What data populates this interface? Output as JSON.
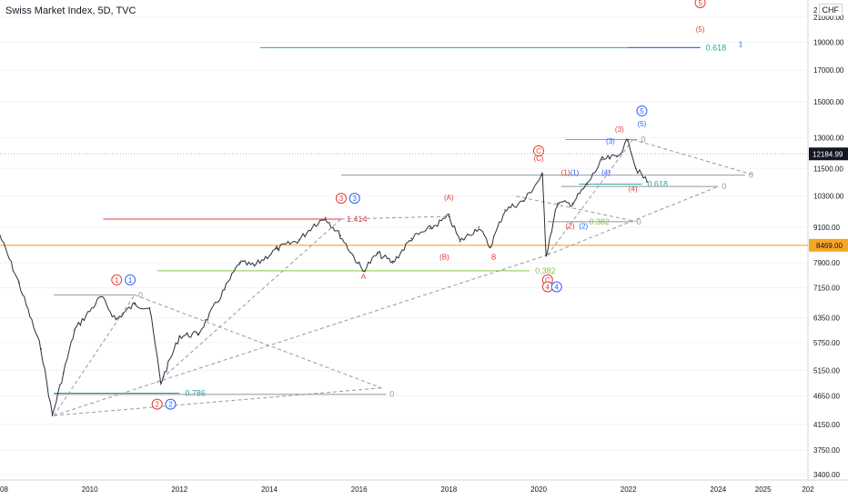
{
  "header": {
    "title": "Swiss Market Index, 5D, TVC",
    "currency": "CHF"
  },
  "colors": {
    "price_line": "#2a2e39",
    "orange": "#f5a623",
    "red": "#e53935",
    "blue": "#2962ff",
    "teal": "#26a69a",
    "green": "#8bc34a",
    "grid": "#f0f3fa"
  },
  "price_axis": {
    "ticks": [
      "21000.00",
      "19000.00",
      "17000.00",
      "15000.00",
      "13000.00",
      "11500.00",
      "10300.00",
      "9100.00",
      "7900.00",
      "7150.00",
      "6350.00",
      "5750.00",
      "5150.00",
      "4650.00",
      "4150.00",
      "3750.00",
      "3400.00"
    ],
    "top_partial": "2",
    "last_price": "12184.99",
    "level_price": "8469.00"
  },
  "time_axis": {
    "ticks": [
      "2008",
      "2010",
      "2012",
      "2014",
      "2016",
      "2018",
      "2020",
      "2022",
      "2024",
      "2025",
      "202"
    ]
  },
  "chart_data": {
    "type": "line",
    "title": "Swiss Market Index, 5D, TVC",
    "xlabel": "",
    "ylabel": "",
    "y_scale": "log",
    "ylim": [
      3400,
      22000
    ],
    "xlim": [
      "2008",
      "2026"
    ],
    "grid": false,
    "last_value": 12184.99,
    "horizontal_level": 8469,
    "series": [
      {
        "x": [
          "2008-01",
          "2008-06",
          "2008-12",
          "2009-03",
          "2009-06",
          "2009-09",
          "2010-04",
          "2010-08",
          "2011-01",
          "2011-05",
          "2011-08",
          "2012-01",
          "2012-06",
          "2013-01",
          "2013-05",
          "2013-09",
          "2014-03",
          "2014-09",
          "2015-01",
          "2015-04",
          "2015-08",
          "2016-02",
          "2016-06",
          "2016-10",
          "2017-03",
          "2017-08",
          "2018-01",
          "2018-04",
          "2018-09",
          "2018-12",
          "2019-04",
          "2019-09",
          "2020-02",
          "2020-03",
          "2020-06",
          "2020-10",
          "2021-02",
          "2021-06",
          "2021-10",
          "2022-01",
          "2022-03",
          "2022-06"
        ],
        "values": [
          8800,
          7300,
          5600,
          4300,
          5100,
          6050,
          6900,
          6300,
          6700,
          6600,
          4900,
          5900,
          5950,
          7100,
          7900,
          7800,
          8350,
          8650,
          9200,
          9450,
          8800,
          7650,
          8200,
          7900,
          8700,
          9050,
          9500,
          8600,
          9100,
          8400,
          9750,
          10100,
          11200,
          8150,
          10000,
          10000,
          10800,
          11900,
          12050,
          12900,
          11500,
          10900
        ]
      }
    ],
    "annotations": {
      "fib_levels": [
        "0.618",
        "0.382",
        "0.786",
        "0.382",
        "0.618",
        "1.414"
      ],
      "zeros": [
        "0",
        "0",
        "0",
        "0",
        "0",
        "0",
        "0"
      ],
      "wave_red": [
        "1",
        "2",
        "3",
        "(A)",
        "A",
        "(B)",
        "B",
        "(C)",
        "C",
        "4",
        "(1)",
        "(2)",
        "(3)",
        "(4)",
        "5",
        "(5)"
      ],
      "wave_blue": [
        "1",
        "2",
        "3",
        "4",
        "(1)",
        "(2)",
        "(3)",
        "(4)",
        "(5)",
        "5",
        "1"
      ]
    }
  }
}
